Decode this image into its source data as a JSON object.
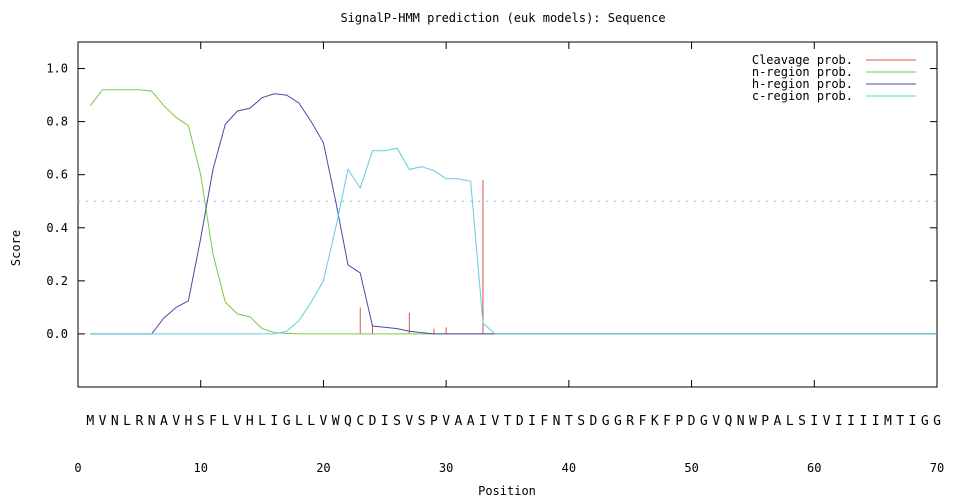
{
  "chart_data": {
    "type": "line",
    "title": "SignalP-HMM prediction (euk models): Sequence",
    "xlabel": "Position",
    "ylabel": "Score",
    "xlim": [
      0,
      70
    ],
    "ylim": [
      -0.2,
      1.1
    ],
    "x_ticks": [
      "0",
      "10",
      "20",
      "30",
      "40",
      "50",
      "60",
      "70"
    ],
    "y_ticks": [
      "0.0",
      "0.2",
      "0.4",
      "0.6",
      "0.8",
      "1.0"
    ],
    "threshold": 0.5,
    "legend_position": "top-right",
    "sequence": "MVNLRNAVHSFLVHLIGLLVWQCDISVSPVAAIVTDIFNTSDGGRFKFPDGVQNWPALSIVIIIIMTIGG",
    "series": [
      {
        "name": "Cleavage prob.",
        "kind": "impulse",
        "color": "#e05050",
        "points": [
          [
            23,
            0.1
          ],
          [
            24,
            0.03
          ],
          [
            27,
            0.08
          ],
          [
            29,
            0.02
          ],
          [
            30,
            0.025
          ],
          [
            33,
            0.58
          ]
        ]
      },
      {
        "name": "n-region prob.",
        "kind": "line",
        "color": "#7ac943",
        "points": [
          [
            1,
            0.86
          ],
          [
            2,
            0.92
          ],
          [
            3,
            0.92
          ],
          [
            4,
            0.92
          ],
          [
            5,
            0.92
          ],
          [
            6,
            0.915
          ],
          [
            7,
            0.86
          ],
          [
            8,
            0.815
          ],
          [
            9,
            0.785
          ],
          [
            10,
            0.6
          ],
          [
            11,
            0.3
          ],
          [
            12,
            0.12
          ],
          [
            13,
            0.075
          ],
          [
            14,
            0.065
          ],
          [
            15,
            0.02
          ],
          [
            16,
            0.005
          ],
          [
            17,
            0.002
          ],
          [
            18,
            0.0
          ],
          [
            70,
            0.0
          ]
        ]
      },
      {
        "name": "h-region prob.",
        "kind": "line",
        "color": "#4a4aa8",
        "points": [
          [
            1,
            0.0
          ],
          [
            6,
            0.0
          ],
          [
            7,
            0.06
          ],
          [
            8,
            0.1
          ],
          [
            9,
            0.125
          ],
          [
            10,
            0.36
          ],
          [
            11,
            0.62
          ],
          [
            12,
            0.79
          ],
          [
            13,
            0.84
          ],
          [
            14,
            0.85
          ],
          [
            15,
            0.89
          ],
          [
            16,
            0.905
          ],
          [
            17,
            0.9
          ],
          [
            18,
            0.87
          ],
          [
            19,
            0.8
          ],
          [
            20,
            0.72
          ],
          [
            21,
            0.5
          ],
          [
            22,
            0.26
          ],
          [
            23,
            0.23
          ],
          [
            24,
            0.03
          ],
          [
            25,
            0.025
          ],
          [
            26,
            0.02
          ],
          [
            27,
            0.01
          ],
          [
            28,
            0.005
          ],
          [
            29,
            0.0
          ],
          [
            70,
            0.0
          ]
        ]
      },
      {
        "name": "c-region prob.",
        "kind": "line",
        "color": "#66ccdd",
        "points": [
          [
            1,
            0.0
          ],
          [
            16,
            0.0
          ],
          [
            17,
            0.01
          ],
          [
            18,
            0.05
          ],
          [
            19,
            0.12
          ],
          [
            20,
            0.2
          ],
          [
            21,
            0.4
          ],
          [
            22,
            0.62
          ],
          [
            23,
            0.55
          ],
          [
            24,
            0.69
          ],
          [
            25,
            0.69
          ],
          [
            26,
            0.7
          ],
          [
            27,
            0.62
          ],
          [
            28,
            0.63
          ],
          [
            29,
            0.615
          ],
          [
            30,
            0.585
          ],
          [
            31,
            0.585
          ],
          [
            32,
            0.575
          ],
          [
            33,
            0.04
          ],
          [
            34,
            0.0
          ],
          [
            70,
            0.0
          ]
        ]
      }
    ]
  }
}
